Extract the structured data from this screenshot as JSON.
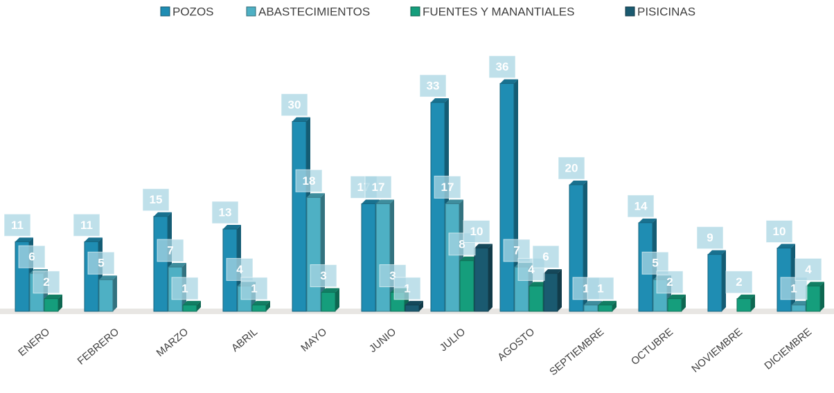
{
  "chart_data": {
    "type": "bar",
    "categories": [
      "ENERO",
      "FEBRERO",
      "MARZO",
      "ABRIL",
      "MAYO",
      "JUNIO",
      "JULIO",
      "AGOSTO",
      "SEPTIEMBRE",
      "OCTUBRE",
      "NOVIEMBRE",
      "DICIEMBRE"
    ],
    "series": [
      {
        "name": "POZOS",
        "color": "#1f8db3",
        "values": [
          11,
          11,
          15,
          13,
          30,
          17,
          33,
          36,
          20,
          14,
          9,
          10
        ]
      },
      {
        "name": "ABASTECIMIENTOS",
        "color": "#4eb0c4",
        "values": [
          6,
          5,
          7,
          4,
          18,
          17,
          17,
          7,
          1,
          5,
          null,
          1
        ]
      },
      {
        "name": "FUENTES Y MANANTIALES",
        "color": "#159e7c",
        "values": [
          2,
          null,
          1,
          1,
          3,
          3,
          8,
          4,
          1,
          2,
          2,
          4
        ]
      },
      {
        "name": "PISICINAS",
        "color": "#1a5a70",
        "values": [
          null,
          null,
          null,
          null,
          null,
          1,
          10,
          6,
          null,
          null,
          null,
          null
        ]
      }
    ],
    "legend": "top"
  }
}
